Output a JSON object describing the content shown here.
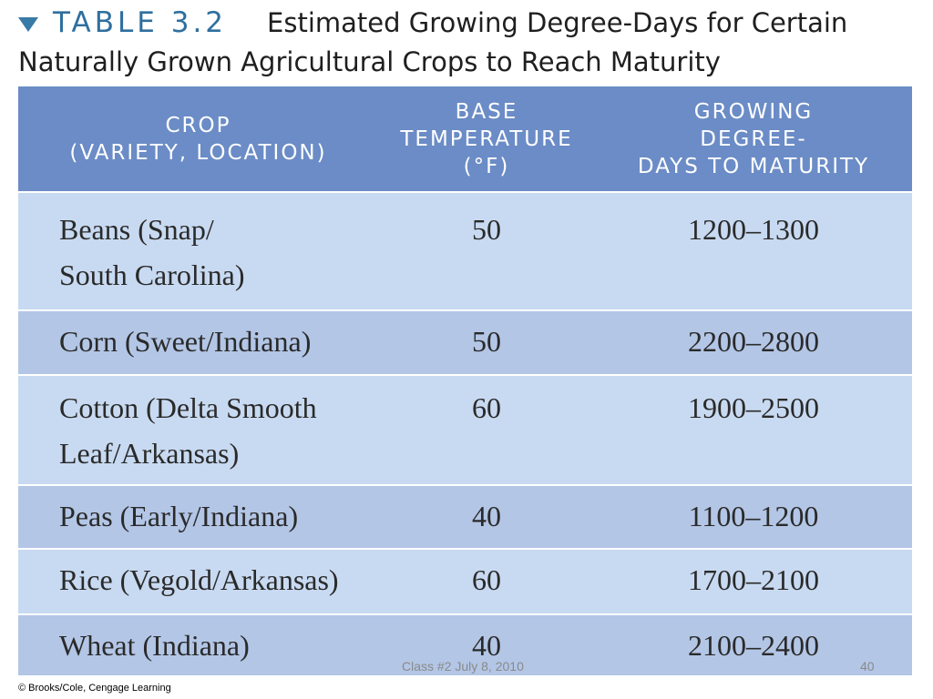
{
  "title": {
    "icon": "triangle-down-icon",
    "table_label": "TABLE 3.2",
    "line1": "Estimated Growing Degree-Days for Certain",
    "line2": "Naturally Grown Agricultural Crops to Reach Maturity"
  },
  "table": {
    "headers": [
      [
        "CROP",
        "(VARIETY, LOCATION)"
      ],
      [
        "BASE",
        "TEMPERATURE",
        "(°F)"
      ],
      [
        "GROWING",
        "DEGREE-",
        "DAYS TO MATURITY"
      ]
    ],
    "rows": [
      {
        "crop": [
          "Beans (Snap/",
          "South Carolina)"
        ],
        "base": "50",
        "gdd": "1200–1300"
      },
      {
        "crop": [
          "Corn (Sweet/Indiana)"
        ],
        "base": "50",
        "gdd": "2200–2800"
      },
      {
        "crop": [
          "Cotton (Delta Smooth",
          "Leaf/Arkansas)"
        ],
        "base": "60",
        "gdd": "1900–2500"
      },
      {
        "crop": [
          "Peas (Early/Indiana)"
        ],
        "base": "40",
        "gdd": "1100–1200"
      },
      {
        "crop": [
          "Rice (Vegold/Arkansas)"
        ],
        "base": "60",
        "gdd": "1700–2100"
      },
      {
        "crop": [
          "Wheat (Indiana)"
        ],
        "base": "40",
        "gdd": "2100–2400"
      }
    ]
  },
  "footer": {
    "date": "Class #2 July 8, 2010",
    "page": "40",
    "copyright": "© Brooks/Cole, Cengage Learning"
  },
  "colors": {
    "header_bg": "#6b8cc6",
    "row_light": "#c8daf1",
    "row_dark": "#b3c6e6",
    "table_label": "#2f6f9e"
  }
}
